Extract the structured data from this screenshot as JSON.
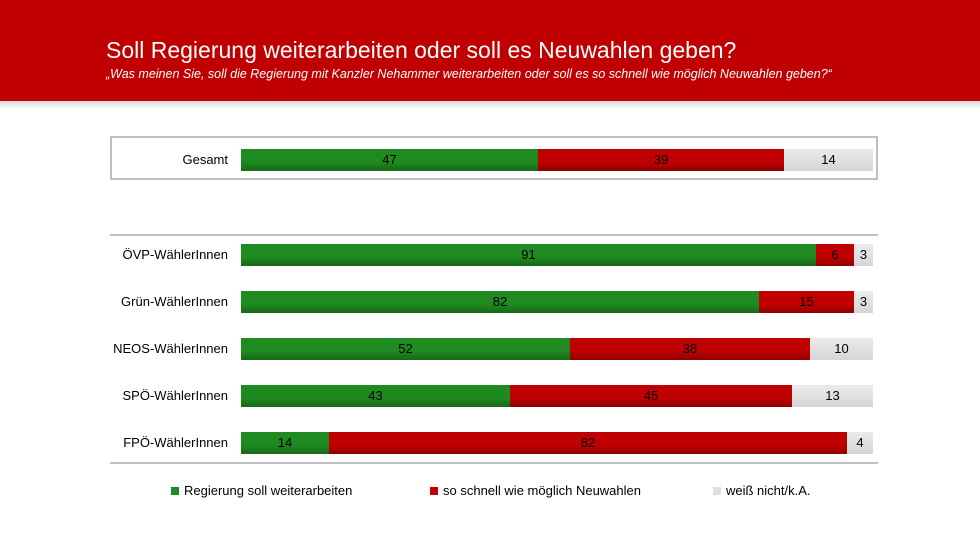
{
  "header": {
    "title": "Soll Regierung weiterarbeiten oder soll es Neuwahlen geben?",
    "subtitle": "„Was meinen Sie, soll die Regierung  mit Kanzler Nehammer  weiterarbeiten  oder soll es so schnell wie möglich Neuwahlen  geben?“"
  },
  "colors": {
    "header_bg": "#c00000",
    "green": "#1f8a1f",
    "red": "#c00000",
    "grey": "#e0e0e0"
  },
  "chart_data": {
    "type": "bar",
    "orientation": "horizontal",
    "stacked": true,
    "categories": [
      "Gesamt",
      "ÖVP-WählerInnen",
      "Grün-WählerInnen",
      "NEOS-WählerInnen",
      "SPÖ-WählerInnen",
      "FPÖ-WählerInnen"
    ],
    "series": [
      {
        "name": "Regierung soll weiterarbeiten",
        "color": "#1f8a1f",
        "values": [
          47,
          91,
          82,
          52,
          43,
          14
        ]
      },
      {
        "name": "so schnell wie möglich Neuwahlen",
        "color": "#c00000",
        "values": [
          39,
          6,
          15,
          38,
          45,
          82
        ]
      },
      {
        "name": "weiß nicht/k.A.",
        "color": "#e0e0e0",
        "values": [
          14,
          3,
          3,
          10,
          13,
          4
        ]
      }
    ],
    "legend_position": "bottom"
  }
}
